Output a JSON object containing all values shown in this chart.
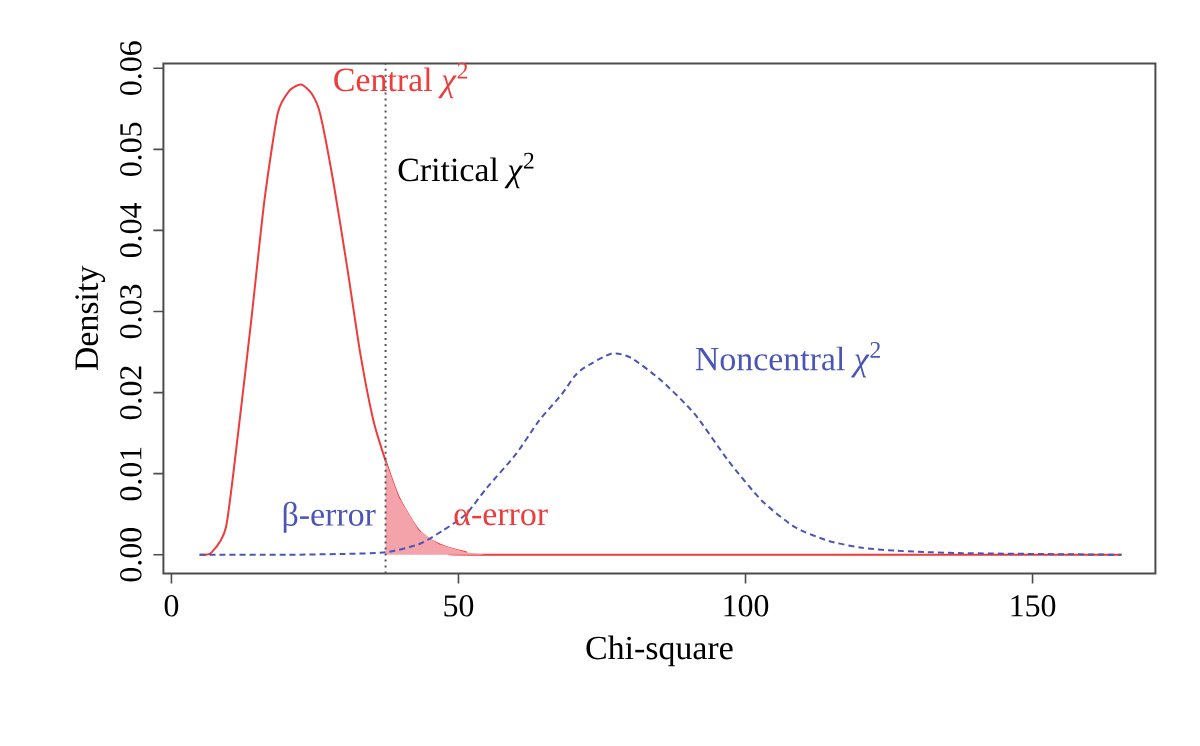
{
  "chart_data": {
    "type": "line",
    "xlabel": "Chi-square",
    "ylabel": "Density",
    "xlim": [
      -1.4,
      171.4
    ],
    "ylim": [
      -0.0023,
      0.0606
    ],
    "xticks": [
      0,
      50,
      100,
      150
    ],
    "yticks": [
      {
        "value": 0,
        "label": "0.00"
      },
      {
        "value": 0.01,
        "label": "0.01"
      },
      {
        "value": 0.02,
        "label": "0.02"
      },
      {
        "value": 0.03,
        "label": "0.03"
      },
      {
        "value": 0.04,
        "label": "0.04"
      },
      {
        "value": 0.05,
        "label": "0.05"
      },
      {
        "value": 0.06,
        "label": "0.06"
      }
    ],
    "marker": "none",
    "series": [
      {
        "name": "Central *χ*$^{2}$",
        "color": "#ee3b3b",
        "line_style": "solid",
        "x": [
          4.9,
          7,
          9.5,
          11.6,
          13.9,
          16.2,
          18.5,
          20.5,
          22.6,
          24.5,
          25.9,
          28.2,
          30.6,
          32.9,
          35.2,
          37.3,
          39.6,
          43.1,
          46.6,
          51.3,
          54.8,
          165.5
        ],
        "values": [
          0,
          0.0003,
          0.0034,
          0.0149,
          0.0289,
          0.0437,
          0.0544,
          0.0572,
          0.058,
          0.0568,
          0.0544,
          0.046,
          0.0355,
          0.0248,
          0.0165,
          0.0116,
          0.0071,
          0.003,
          0.0013,
          0.0003,
          0,
          0
        ]
      },
      {
        "type": "area",
        "color": "#f4a3ab",
        "x": [
          37.3,
          39.6,
          43.1,
          46.6,
          51.3,
          54.8
        ],
        "values": [
          0.0116,
          0.0071,
          0.003,
          0.0013,
          0.0003,
          0
        ]
      },
      {
        "name": "Noncentral *χ*$^{2}$",
        "color": "#4a55b5",
        "line_style": "dashed",
        "x": [
          4.9,
          20,
          30,
          37.3,
          43.1,
          47.3,
          51.3,
          55,
          60,
          64,
          68,
          70.2,
          72,
          76.6,
          80,
          85.3,
          91.1,
          97,
          102.8,
          108.6,
          114.5,
          120,
          126.1,
          137.8,
          165.5
        ],
        "values": [
          0,
          0,
          0.0001,
          0.0003,
          0.0013,
          0.003,
          0.005,
          0.0083,
          0.0124,
          0.0165,
          0.0198,
          0.022,
          0.0231,
          0.0248,
          0.0243,
          0.0215,
          0.0174,
          0.0116,
          0.0067,
          0.0034,
          0.0017,
          0.0009,
          0.0005,
          0.0002,
          0
        ]
      }
    ],
    "ref_lines": [
      {
        "axis": "x",
        "value": 37.3,
        "label": "Critical *χ*$^{2}$",
        "color": "#555555",
        "line_style": "dotted"
      }
    ],
    "annotations": [
      "β-error",
      "α-error"
    ]
  }
}
